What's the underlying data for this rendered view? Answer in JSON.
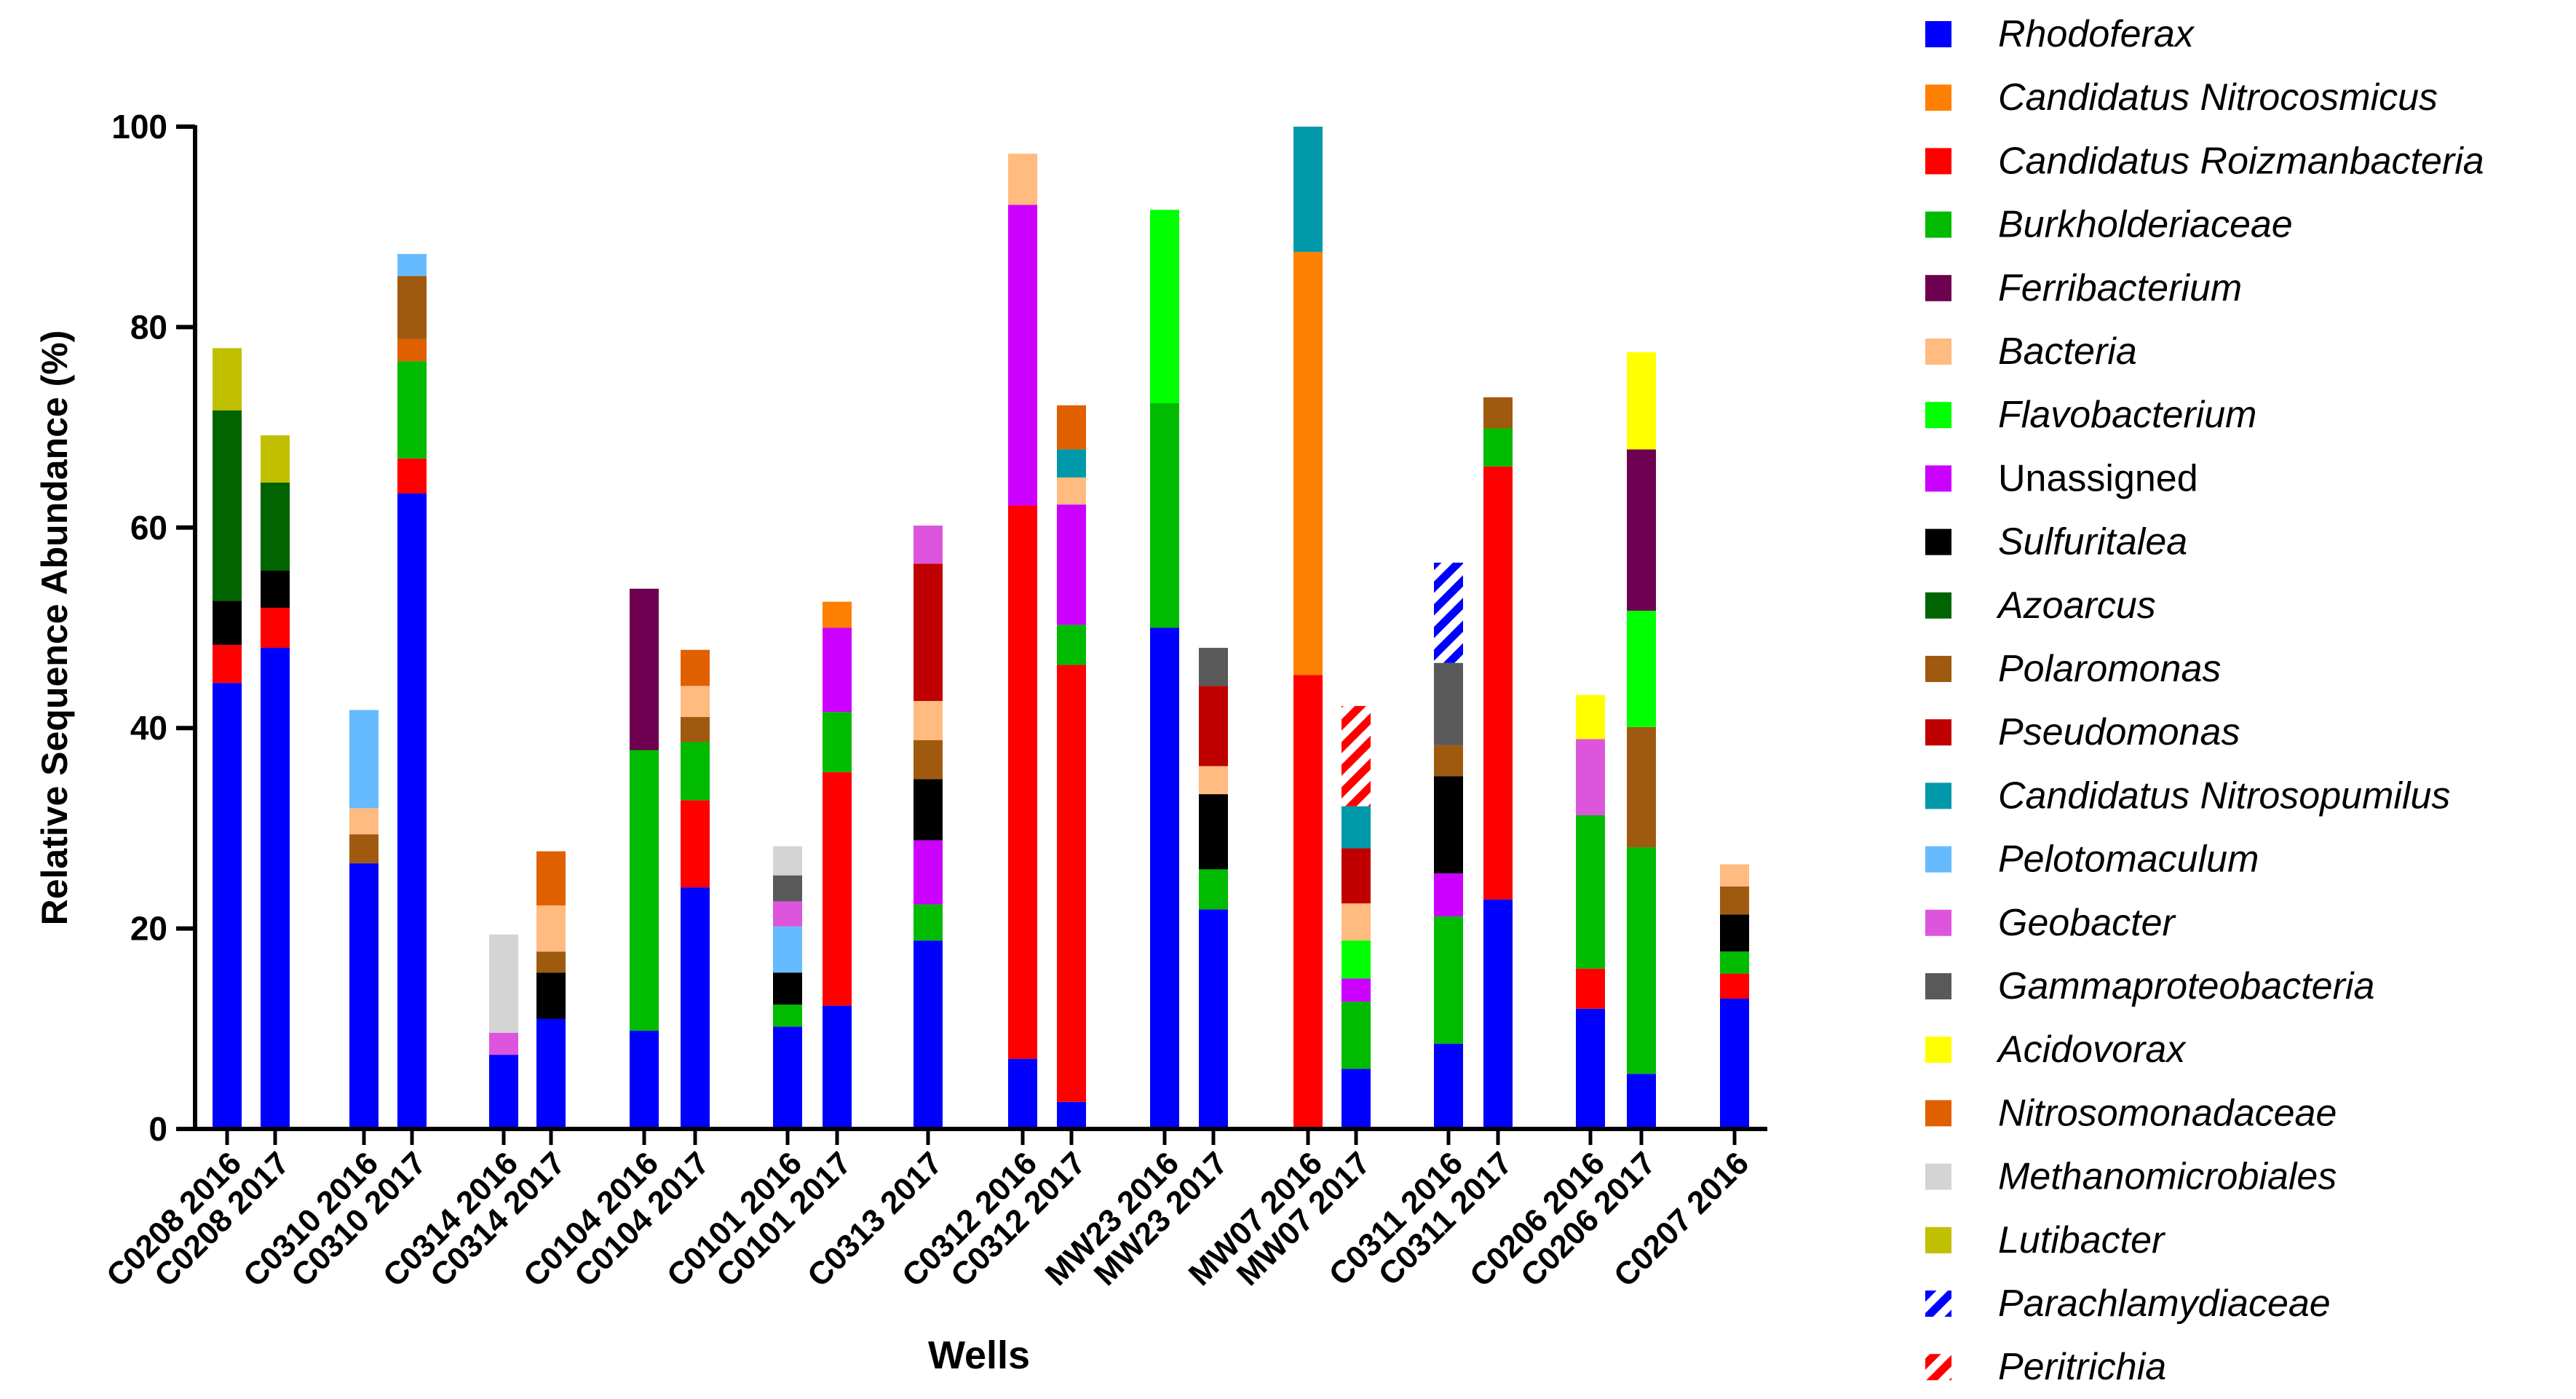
{
  "chart_data": {
    "type": "bar",
    "stacked": true,
    "ylabel": "Relative Sequence Abundance (%)",
    "xlabel": "Wells",
    "ylim": [
      0,
      100
    ],
    "yticks": [
      0,
      20,
      40,
      60,
      80,
      100
    ],
    "legend_position": "right",
    "legend": [
      {
        "name": "Rhodoferax",
        "color": "#0000ff",
        "italic": true,
        "pattern": null
      },
      {
        "name": "Candidatus Nitrocosmicus",
        "color": "#ff8000",
        "italic": true,
        "pattern": null
      },
      {
        "name": "Candidatus Roizmanbacteria",
        "color": "#ff0000",
        "italic": true,
        "pattern": null
      },
      {
        "name": "Burkholderiaceae",
        "color": "#00bb00",
        "italic": true,
        "pattern": null
      },
      {
        "name": "Ferribacterium",
        "color": "#6d0050",
        "italic": true,
        "pattern": null
      },
      {
        "name": "Bacteria",
        "color": "#ffbb80",
        "italic": true,
        "pattern": null
      },
      {
        "name": "Flavobacterium",
        "color": "#00ff00",
        "italic": true,
        "pattern": null
      },
      {
        "name": "Unassigned",
        "color": "#cc00ff",
        "italic": false,
        "pattern": null
      },
      {
        "name": "Sulfuritalea",
        "color": "#000000",
        "italic": true,
        "pattern": null
      },
      {
        "name": "Azoarcus",
        "color": "#006400",
        "italic": true,
        "pattern": null
      },
      {
        "name": "Polaromonas",
        "color": "#a05a10",
        "italic": true,
        "pattern": null
      },
      {
        "name": "Pseudomonas",
        "color": "#c00000",
        "italic": true,
        "pattern": null
      },
      {
        "name": "Candidatus Nitrosopumilus",
        "color": "#0099aa",
        "italic": true,
        "pattern": null
      },
      {
        "name": "Pelotomaculum",
        "color": "#66bbff",
        "italic": true,
        "pattern": null
      },
      {
        "name": "Geobacter",
        "color": "#dd55dd",
        "italic": true,
        "pattern": null
      },
      {
        "name": "Gammaproteobacteria",
        "color": "#595959",
        "italic": true,
        "pattern": null
      },
      {
        "name": "Acidovorax",
        "color": "#ffff00",
        "italic": true,
        "pattern": null
      },
      {
        "name": "Nitrosomonadaceae",
        "color": "#e06000",
        "italic": true,
        "pattern": null
      },
      {
        "name": "Methanomicrobiales",
        "color": "#d4d4d4",
        "italic": true,
        "pattern": null
      },
      {
        "name": "Lutibacter",
        "color": "#c0c000",
        "italic": true,
        "pattern": null
      },
      {
        "name": "Parachlamydiaceae",
        "color": "#0000ff",
        "italic": true,
        "pattern": "hatch"
      },
      {
        "name": "Peritrichia",
        "color": "#ff0000",
        "italic": true,
        "pattern": "hatch"
      }
    ],
    "bars": [
      {
        "label": "C0208 2016",
        "segments": [
          [
            "Rhodoferax",
            44.5
          ],
          [
            "Candidatus Roizmanbacteria",
            3.8
          ],
          [
            "Sulfuritalea",
            4.4
          ],
          [
            "Azoarcus",
            19
          ],
          [
            "Lutibacter",
            6.2
          ]
        ]
      },
      {
        "label": "C0208 2017",
        "segments": [
          [
            "Rhodoferax",
            48
          ],
          [
            "Candidatus Roizmanbacteria",
            4
          ],
          [
            "Sulfuritalea",
            3.7
          ],
          [
            "Azoarcus",
            8.8
          ],
          [
            "Lutibacter",
            4.7
          ]
        ]
      },
      {
        "label": "C0310 2016",
        "segments": [
          [
            "Rhodoferax",
            26.5
          ],
          [
            "Polaromonas",
            2.9
          ],
          [
            "Bacteria",
            2.6
          ],
          [
            "Pelotomaculum",
            9.8
          ]
        ]
      },
      {
        "label": "C0310 2017",
        "segments": [
          [
            "Rhodoferax",
            63.4
          ],
          [
            "Candidatus Roizmanbacteria",
            3.5
          ],
          [
            "Burkholderiaceae",
            9.7
          ],
          [
            "Nitrosomonadaceae",
            2.2
          ],
          [
            "Polaromonas",
            6.3
          ],
          [
            "Pelotomaculum",
            2.2
          ]
        ]
      },
      {
        "label": "C0314 2016",
        "segments": [
          [
            "Rhodoferax",
            7.4
          ],
          [
            "Geobacter",
            2.2
          ],
          [
            "Methanomicrobiales",
            9.8
          ]
        ]
      },
      {
        "label": "C0314 2017",
        "segments": [
          [
            "Rhodoferax",
            11
          ],
          [
            "Sulfuritalea",
            4.6
          ],
          [
            "Polaromonas",
            2.1
          ],
          [
            "Bacteria",
            4.6
          ],
          [
            "Nitrosomonadaceae",
            5.4
          ]
        ]
      },
      {
        "label": "C0104 2016",
        "segments": [
          [
            "Rhodoferax",
            9.8
          ],
          [
            "Burkholderiaceae",
            28
          ],
          [
            "Ferribacterium",
            16.1
          ]
        ]
      },
      {
        "label": "C0104 2017",
        "segments": [
          [
            "Rhodoferax",
            24.1
          ],
          [
            "Candidatus Roizmanbacteria",
            8.7
          ],
          [
            "Burkholderiaceae",
            5.8
          ],
          [
            "Polaromonas",
            2.5
          ],
          [
            "Bacteria",
            3.1
          ],
          [
            "Nitrosomonadaceae",
            3.6
          ]
        ]
      },
      {
        "label": "C0101 2016",
        "segments": [
          [
            "Rhodoferax",
            10.2
          ],
          [
            "Burkholderiaceae",
            2.2
          ],
          [
            "Sulfuritalea",
            3.2
          ],
          [
            "Pelotomaculum",
            4.6
          ],
          [
            "Geobacter",
            2.5
          ],
          [
            "Gammaproteobacteria",
            2.6
          ],
          [
            "Methanomicrobiales",
            2.9
          ]
        ]
      },
      {
        "label": "C0101 2017",
        "segments": [
          [
            "Rhodoferax",
            12.3
          ],
          [
            "Candidatus Roizmanbacteria",
            23.3
          ],
          [
            "Burkholderiaceae",
            6
          ],
          [
            "Unassigned",
            8.4
          ],
          [
            "Candidatus Nitrocosmicus",
            2.6
          ]
        ]
      },
      {
        "label": "C0313 2017",
        "segments": [
          [
            "Rhodoferax",
            18.8
          ],
          [
            "Burkholderiaceae",
            3.6
          ],
          [
            "Unassigned",
            6.4
          ],
          [
            "Sulfuritalea",
            6.1
          ],
          [
            "Polaromonas",
            3.9
          ],
          [
            "Bacteria",
            3.9
          ],
          [
            "Pseudomonas",
            13.7
          ],
          [
            "Geobacter",
            3.8
          ]
        ]
      },
      {
        "label": "C0312 2016",
        "segments": [
          [
            "Rhodoferax",
            7
          ],
          [
            "Candidatus Roizmanbacteria",
            55.2
          ],
          [
            "Unassigned",
            30
          ],
          [
            "Bacteria",
            5.1
          ]
        ]
      },
      {
        "label": "C0312 2017",
        "segments": [
          [
            "Rhodoferax",
            2.7
          ],
          [
            "Candidatus Roizmanbacteria",
            43.6
          ],
          [
            "Burkholderiaceae",
            4
          ],
          [
            "Unassigned",
            12
          ],
          [
            "Bacteria",
            2.7
          ],
          [
            "Candidatus Nitrosopumilus",
            2.8
          ],
          [
            "Nitrosomonadaceae",
            4.4
          ]
        ]
      },
      {
        "label": "MW23 2016",
        "segments": [
          [
            "Rhodoferax",
            50
          ],
          [
            "Burkholderiaceae",
            22.4
          ],
          [
            "Flavobacterium",
            19.3
          ]
        ]
      },
      {
        "label": "MW23 2017",
        "segments": [
          [
            "Rhodoferax",
            21.9
          ],
          [
            "Burkholderiaceae",
            4
          ],
          [
            "Sulfuritalea",
            7.5
          ],
          [
            "Bacteria",
            2.8
          ],
          [
            "Pseudomonas",
            8
          ],
          [
            "Gammaproteobacteria",
            3.8
          ]
        ]
      },
      {
        "label": "MW07 2016",
        "segments": [
          [
            "Candidatus Roizmanbacteria",
            45.3
          ],
          [
            "Candidatus Nitrocosmicus",
            42.2
          ],
          [
            "Candidatus Nitrosopumilus",
            12.5
          ]
        ]
      },
      {
        "label": "MW07 2017",
        "segments": [
          [
            "Rhodoferax",
            6
          ],
          [
            "Burkholderiaceae",
            6.7
          ],
          [
            "Unassigned",
            2.3
          ],
          [
            "Flavobacterium",
            3.8
          ],
          [
            "Bacteria",
            3.7
          ],
          [
            "Pseudomonas",
            5.5
          ],
          [
            "Candidatus Nitrosopumilus",
            4.2
          ],
          [
            "Peritrichia",
            10
          ]
        ]
      },
      {
        "label": "C0311 2016",
        "segments": [
          [
            "Rhodoferax",
            8.5
          ],
          [
            "Burkholderiaceae",
            12.7
          ],
          [
            "Unassigned",
            4.3
          ],
          [
            "Sulfuritalea",
            9.7
          ],
          [
            "Polaromonas",
            3.1
          ],
          [
            "Gammaproteobacteria",
            8.2
          ],
          [
            "Parachlamydiaceae",
            10
          ]
        ]
      },
      {
        "label": "C0311 2017",
        "segments": [
          [
            "Rhodoferax",
            22.9
          ],
          [
            "Candidatus Roizmanbacteria",
            43.2
          ],
          [
            "Burkholderiaceae",
            3.8
          ],
          [
            "Polaromonas",
            3.1
          ]
        ]
      },
      {
        "label": "C0206 2016",
        "segments": [
          [
            "Rhodoferax",
            12
          ],
          [
            "Candidatus Roizmanbacteria",
            4
          ],
          [
            "Burkholderiaceae",
            15.3
          ],
          [
            "Geobacter",
            7.6
          ],
          [
            "Acidovorax",
            4.4
          ]
        ]
      },
      {
        "label": "C0206 2017",
        "segments": [
          [
            "Rhodoferax",
            5.5
          ],
          [
            "Burkholderiaceae",
            22.6
          ],
          [
            "Polaromonas",
            12
          ],
          [
            "Flavobacterium",
            11.6
          ],
          [
            "Ferribacterium",
            16.1
          ],
          [
            "Acidovorax",
            9.7
          ]
        ]
      },
      {
        "label": "C0207 2016",
        "segments": [
          [
            "Rhodoferax",
            13
          ],
          [
            "Candidatus Roizmanbacteria",
            2.5
          ],
          [
            "Burkholderiaceae",
            2.2
          ],
          [
            "Sulfuritalea",
            3.7
          ],
          [
            "Polaromonas",
            2.8
          ],
          [
            "Bacteria",
            2.2
          ]
        ]
      }
    ]
  }
}
